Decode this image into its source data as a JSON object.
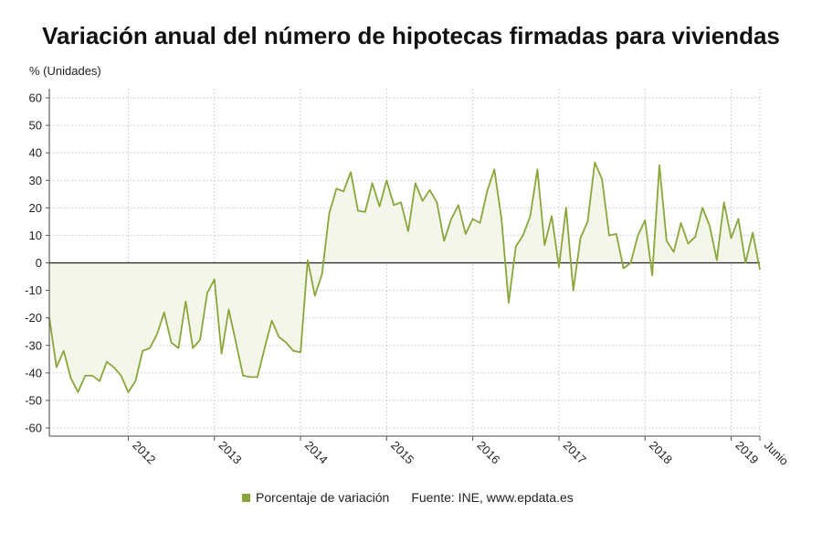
{
  "title": "Variación anual del número de hipotecas firmadas para viviendas",
  "y_unit": "% (Unidades)",
  "legend": {
    "series_label": "Porcentaje de variación",
    "source": "Fuente: INE, www.epdata.es"
  },
  "colors": {
    "line": "#8aa63a",
    "fill": "#f3f6e8",
    "grid": "#d0d0d0",
    "zero": "#222222"
  },
  "chart_data": {
    "type": "line",
    "ylim": [
      -60,
      60
    ],
    "yticks": [
      60,
      50,
      40,
      30,
      20,
      10,
      0,
      -10,
      -20,
      -30,
      -40,
      -50,
      -60
    ],
    "x_labels": [
      "2012",
      "2013",
      "2014",
      "2015",
      "2016",
      "2017",
      "2018",
      "2019",
      "Junio"
    ],
    "series": [
      {
        "name": "Porcentaje de variación",
        "start": "2011-02",
        "end": "2019-06",
        "values": [
          -20,
          -38,
          -32,
          -42,
          -47,
          -41,
          -41,
          -43,
          -36,
          -38,
          -41,
          -47,
          -43,
          -32,
          -31,
          -26,
          -18,
          -29,
          -31,
          -14,
          -31,
          -28,
          -11,
          -6,
          -33,
          -17,
          -29,
          -41,
          -41.5,
          -41.5,
          -31,
          -21,
          -27,
          -29,
          -32,
          -32.5,
          1,
          -12,
          -4,
          18,
          27,
          26,
          33,
          19,
          18.5,
          29,
          20.5,
          30,
          21,
          22,
          11.5,
          29,
          22.5,
          26.5,
          22,
          8,
          16,
          21,
          10.5,
          16,
          14.5,
          26,
          34,
          16,
          -14.5,
          6,
          10,
          17,
          34,
          6.5,
          17,
          -1.5,
          20,
          -10,
          9,
          15,
          36.5,
          30.5,
          10,
          10.5,
          -2,
          0,
          10,
          15.5,
          -4.5,
          35.5,
          8,
          4,
          14.5,
          7,
          9.5,
          20,
          13.5,
          1,
          22,
          9,
          16,
          0,
          11,
          -2.5
        ]
      }
    ]
  }
}
